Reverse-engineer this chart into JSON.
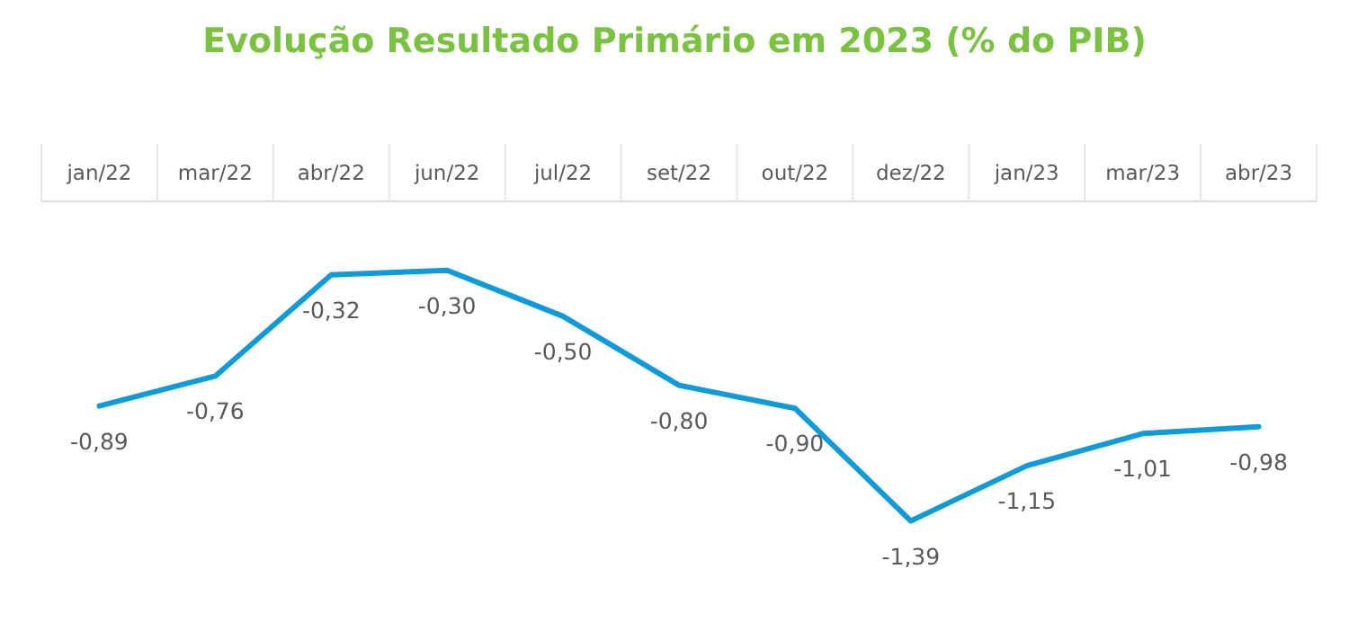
{
  "chart_data": {
    "type": "line",
    "title": "Evolução Resultado Primário em 2023 (% do PIB)",
    "categories": [
      "jan/22",
      "mar/22",
      "abr/22",
      "jun/22",
      "jul/22",
      "set/22",
      "out/22",
      "dez/22",
      "jan/23",
      "mar/23",
      "abr/23"
    ],
    "series": [
      {
        "color": "#119ad8",
        "values": [
          -0.89,
          -0.76,
          -0.32,
          -0.3,
          -0.5,
          -0.8,
          -0.9,
          -1.39,
          -1.15,
          -1.01,
          -0.98
        ],
        "value_labels": [
          "-0,89",
          "-0,76",
          "-0,32",
          "-0,30",
          "-0,50",
          "-0,80",
          "-0,90",
          "-1,39",
          "-1,15",
          "-1,01",
          "-0,98"
        ]
      }
    ],
    "line_style": "solid"
  }
}
